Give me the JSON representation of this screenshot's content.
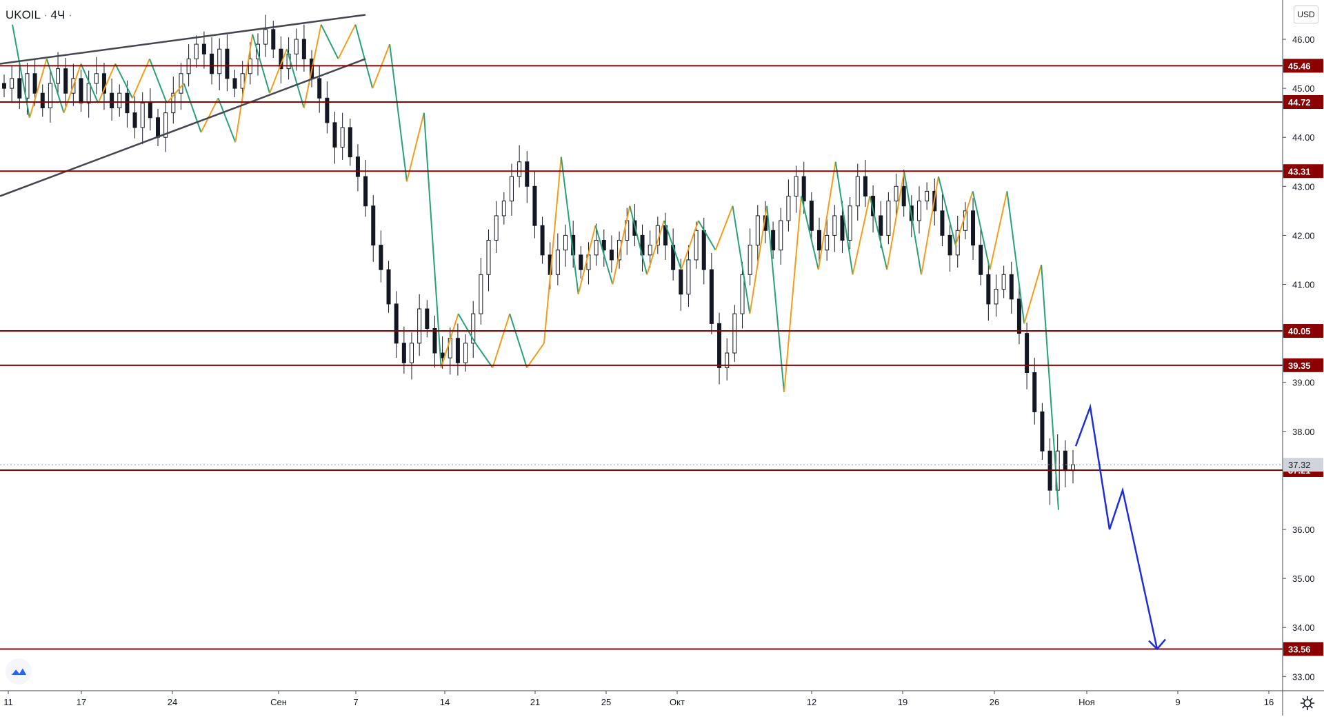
{
  "header": {
    "symbol": "UKOIL",
    "separator": "·",
    "interval": "4Ч",
    "dot": "·",
    "currency": "USD"
  },
  "chart_data": {
    "type": "candlestick",
    "yaxis": {
      "ticks": [
        "46.00",
        "45.00",
        "44.00",
        "43.00",
        "42.00",
        "41.00",
        "39.00",
        "38.00",
        "36.00",
        "35.00",
        "34.00",
        "33.00"
      ],
      "ylim": [
        32.7,
        46.8
      ]
    },
    "xaxis": {
      "tick_labels": [
        "11",
        "17",
        "24",
        "Сен",
        "7",
        "14",
        "21",
        "25",
        "Окт",
        "12",
        "19",
        "26",
        "Ноя",
        "9",
        "16"
      ]
    },
    "horizontal_levels": [
      {
        "value": 45.46,
        "label": "45.46"
      },
      {
        "value": 44.72,
        "label": "44.72"
      },
      {
        "value": 43.31,
        "label": "43.31"
      },
      {
        "value": 40.05,
        "label": "40.05"
      },
      {
        "value": 39.35,
        "label": "39.35"
      },
      {
        "value": 37.21,
        "label": "37.21"
      },
      {
        "value": 33.56,
        "label": "33.56"
      }
    ],
    "last_price": {
      "value": 37.32,
      "label": "37.32"
    },
    "zigzag": [
      46.3,
      44.4,
      45.6,
      44.5,
      45.5,
      44.7,
      45.5,
      44.8,
      45.6,
      44.7,
      45.1,
      44.1,
      44.8,
      43.9,
      46.1,
      44.9,
      45.8,
      44.6,
      46.3,
      45.6,
      46.3,
      45.0,
      45.9,
      43.1,
      44.5,
      39.3,
      40.4,
      39.8,
      39.3,
      40.4,
      39.3,
      39.8,
      43.6,
      40.8,
      42.2,
      41.0,
      42.6,
      41.2,
      42.3,
      41.3,
      42.3,
      41.7,
      42.6,
      40.4,
      42.6,
      38.8,
      42.8,
      41.3,
      43.5,
      41.2,
      42.8,
      41.3,
      43.3,
      41.2,
      43.2,
      41.8,
      42.9,
      41.3,
      42.9,
      40.2,
      41.4,
      36.4
    ],
    "candle_closes": [
      45.0,
      45.2,
      44.8,
      45.3,
      44.9,
      44.6,
      45.1,
      45.4,
      44.9,
      45.2,
      44.7,
      45.1,
      45.3,
      44.9,
      44.6,
      44.9,
      44.5,
      44.2,
      44.7,
      44.4,
      44.0,
      44.5,
      44.9,
      45.3,
      45.6,
      45.9,
      45.7,
      45.3,
      45.8,
      45.2,
      45.0,
      45.3,
      45.6,
      45.9,
      46.2,
      45.8,
      45.4,
      45.7,
      46.0,
      45.6,
      45.2,
      44.8,
      44.3,
      43.8,
      44.2,
      43.6,
      43.2,
      42.6,
      41.8,
      41.3,
      40.6,
      39.8,
      39.4,
      39.8,
      40.5,
      40.1,
      39.6,
      39.5,
      39.9,
      39.4,
      39.8,
      40.4,
      41.2,
      41.9,
      42.4,
      42.7,
      43.2,
      43.5,
      43.0,
      42.2,
      41.6,
      41.2,
      41.7,
      42.0,
      41.6,
      41.3,
      41.6,
      41.9,
      41.7,
      41.5,
      41.9,
      42.3,
      42.0,
      41.6,
      41.8,
      42.2,
      41.8,
      41.3,
      40.8,
      41.5,
      42.1,
      41.3,
      40.2,
      39.3,
      39.6,
      40.4,
      41.2,
      41.8,
      42.4,
      42.1,
      41.7,
      42.3,
      42.8,
      43.2,
      42.7,
      42.1,
      41.7,
      42.0,
      42.4,
      41.9,
      42.6,
      43.2,
      42.8,
      42.4,
      42.0,
      42.7,
      43.0,
      42.6,
      42.3,
      42.7,
      42.9,
      42.5,
      42.0,
      41.6,
      42.1,
      42.5,
      41.8,
      41.2,
      40.6,
      40.9,
      41.2,
      40.7,
      40.0,
      39.2,
      38.4,
      37.6,
      36.8,
      37.6,
      37.2,
      37.32
    ]
  },
  "branding": {
    "logo": "tradingview-logo-icon",
    "settings": "gear-icon"
  }
}
